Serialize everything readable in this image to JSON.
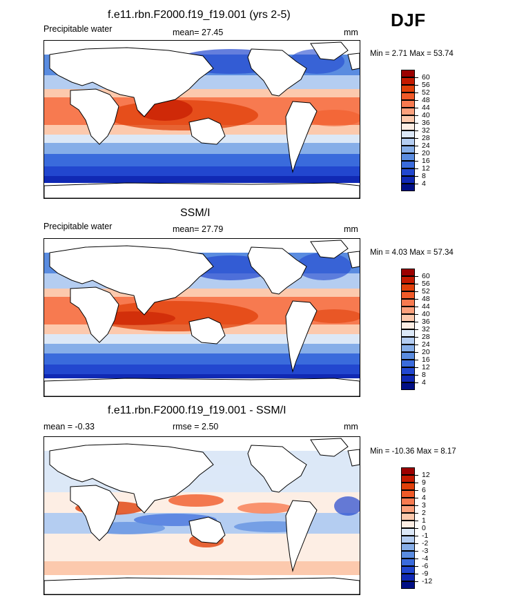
{
  "season": "DJF",
  "panels": [
    {
      "id": "model",
      "title": "f.e11.rbn.F2000.f19_f19.001 (yrs 2-5)",
      "left_label": "Precipitable water",
      "center_label": "mean=  27.45",
      "units": "mm",
      "minmax": "Min =   2.71 Max =  53.74",
      "colorbar": {
        "levels": [
          "60",
          "56",
          "52",
          "48",
          "44",
          "40",
          "36",
          "32",
          "28",
          "24",
          "20",
          "16",
          "12",
          "8",
          "4"
        ],
        "colors": [
          "#9c0000",
          "#c41a00",
          "#e0400a",
          "#f05a28",
          "#f77a50",
          "#fba07c",
          "#fcc9ad",
          "#fdeee4",
          "#dce8f7",
          "#b4cdf1",
          "#86aee8",
          "#5a8ce0",
          "#3a6bdc",
          "#2247cf",
          "#1029b4",
          "#000f85"
        ]
      }
    },
    {
      "id": "obs",
      "title": "SSM/I",
      "left_label": "Precipitable water",
      "center_label": "mean=  27.79",
      "units": "mm",
      "minmax": "Min =   4.03 Max =  57.34",
      "colorbar": {
        "levels": [
          "60",
          "56",
          "52",
          "48",
          "44",
          "40",
          "36",
          "32",
          "28",
          "24",
          "20",
          "16",
          "12",
          "8",
          "4"
        ],
        "colors": [
          "#9c0000",
          "#c41a00",
          "#e0400a",
          "#f05a28",
          "#f77a50",
          "#fba07c",
          "#fcc9ad",
          "#fdeee4",
          "#dce8f7",
          "#b4cdf1",
          "#86aee8",
          "#5a8ce0",
          "#3a6bdc",
          "#2247cf",
          "#1029b4",
          "#000f85"
        ]
      }
    },
    {
      "id": "diff",
      "title": "f.e11.rbn.F2000.f19_f19.001 - SSM/I",
      "left_label": "mean =  -0.33",
      "center_label": "rmse =   2.50",
      "units": "mm",
      "minmax": "Min = -10.36 Max =   8.17",
      "colorbar": {
        "levels": [
          "12",
          "9",
          "6",
          "4",
          "3",
          "2",
          "1",
          "0",
          "-1",
          "-2",
          "-3",
          "-4",
          "-6",
          "-9",
          "-12"
        ],
        "colors": [
          "#9c0000",
          "#c41a00",
          "#e0400a",
          "#f05a28",
          "#f77a50",
          "#fba07c",
          "#fcc9ad",
          "#fdeee4",
          "#dce8f7",
          "#b4cdf1",
          "#86aee8",
          "#5a8ce0",
          "#3a6bdc",
          "#2247cf",
          "#1029b4",
          "#000f85"
        ]
      }
    }
  ]
}
